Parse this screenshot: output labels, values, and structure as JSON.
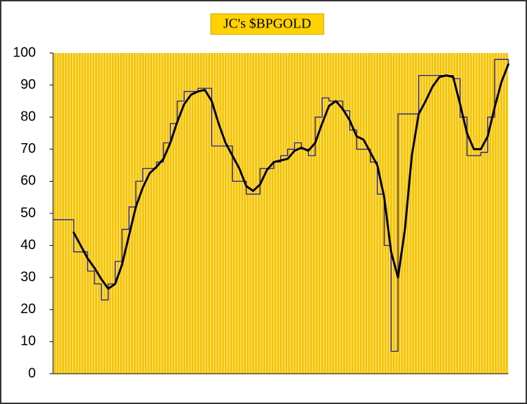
{
  "chart_data": {
    "type": "line",
    "title": "JC's $BPGOLD",
    "ylim": [
      0,
      100
    ],
    "yticks": [
      0,
      10,
      20,
      30,
      40,
      50,
      60,
      70,
      80,
      90,
      100
    ],
    "grid": false,
    "series": [
      {
        "color": "#1c1c9e",
        "step": true,
        "width": 1.3,
        "values": [
          48,
          48,
          48,
          38,
          38,
          32,
          28,
          23,
          28,
          35,
          45,
          52,
          60,
          64,
          64,
          66,
          72,
          78,
          85,
          88,
          88,
          89,
          89,
          71,
          71,
          71,
          60,
          60,
          56,
          56,
          64,
          64,
          66,
          68,
          70,
          72,
          70,
          68,
          80,
          86,
          85,
          85,
          82,
          76,
          70,
          70,
          66,
          56,
          40,
          7,
          81,
          81,
          81,
          93,
          93,
          93,
          93,
          93,
          92,
          80,
          68,
          68,
          69,
          80,
          98,
          98,
          97
        ]
      },
      {
        "color": "#000000",
        "step": false,
        "width": 3,
        "values": [
          null,
          null,
          null,
          44,
          40,
          36,
          33,
          29.5,
          26.5,
          28,
          34,
          43,
          52,
          58,
          62.5,
          64.5,
          67,
          72,
          78.5,
          84,
          87,
          88,
          88.5,
          85,
          78,
          72,
          68,
          64,
          58.5,
          57,
          59,
          63.5,
          66,
          66.5,
          67,
          69.5,
          70.5,
          69.5,
          72,
          78,
          83.5,
          85,
          82.5,
          79,
          74,
          73,
          69,
          65,
          55,
          38,
          30,
          45,
          68,
          81,
          85,
          89.5,
          92.5,
          93,
          92.5,
          84,
          75,
          70,
          70,
          74,
          83,
          91,
          96.5
        ]
      }
    ]
  }
}
